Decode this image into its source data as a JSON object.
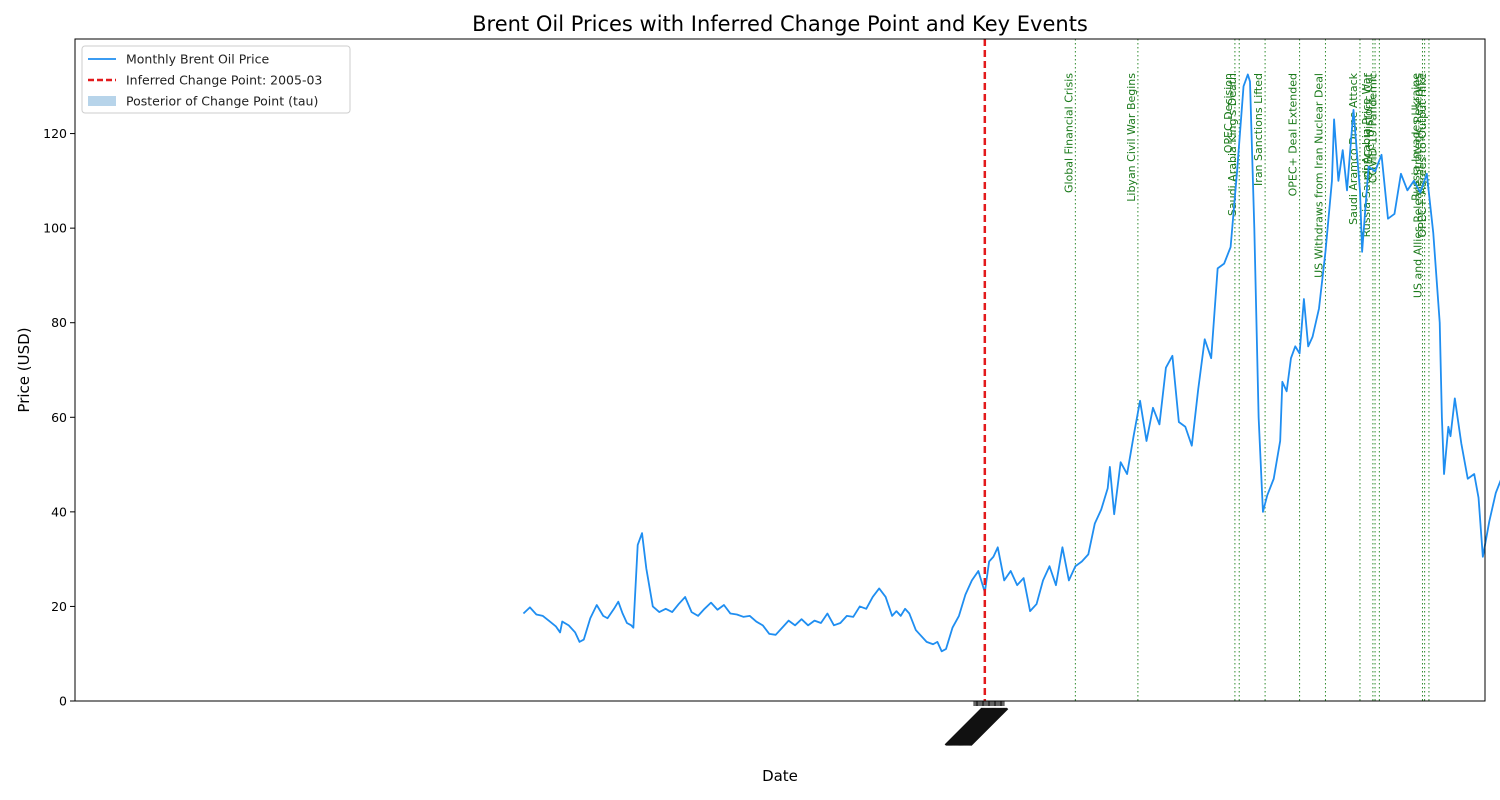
{
  "chart_data": {
    "type": "line",
    "title": "Brent Oil Prices with Inferred Change Point and Key Events",
    "xlabel": "Date",
    "ylabel": "Price (USD)",
    "ylim": [
      0,
      140
    ],
    "yticks": [
      0,
      20,
      40,
      60,
      80,
      100,
      120
    ],
    "xlim": [
      1970,
      2024.5
    ],
    "grid": false,
    "legend": {
      "placement": "top-left",
      "entries": [
        {
          "label": "Monthly Brent Oil Price",
          "style": "line",
          "color": "#1f8ef1"
        },
        {
          "label": "Inferred Change Point: 2005-03",
          "style": "dashed",
          "color": "#e31a1c"
        },
        {
          "label": "Posterior of Change Point (tau)",
          "style": "patch",
          "color": "#b7d4ea"
        }
      ]
    },
    "change_point": {
      "date": "2005-03",
      "color": "#e31a1c"
    },
    "series": [
      {
        "name": "Monthly Brent Oil Price",
        "color": "#1f8ef1",
        "points": [
          [
            "1987-05",
            18.5
          ],
          [
            "1987-08",
            19.8
          ],
          [
            "1987-11",
            18.3
          ],
          [
            "1988-02",
            18.0
          ],
          [
            "1988-05",
            16.9
          ],
          [
            "1988-08",
            15.8
          ],
          [
            "1988-10",
            14.5
          ],
          [
            "1988-11",
            16.8
          ],
          [
            "1989-02",
            16.0
          ],
          [
            "1989-05",
            14.5
          ],
          [
            "1989-07",
            12.5
          ],
          [
            "1989-09",
            13.0
          ],
          [
            "1989-12",
            17.5
          ],
          [
            "1990-03",
            20.3
          ],
          [
            "1990-06",
            18.0
          ],
          [
            "1990-08",
            17.5
          ],
          [
            "1990-11",
            19.5
          ],
          [
            "1991-01",
            21.0
          ],
          [
            "1991-03",
            18.5
          ],
          [
            "1991-05",
            16.5
          ],
          [
            "1991-07",
            16.0
          ],
          [
            "1991-08",
            15.5
          ],
          [
            "1991-10",
            33.0
          ],
          [
            "1991-12",
            35.5
          ],
          [
            "1992-02",
            28.0
          ],
          [
            "1992-05",
            20.0
          ],
          [
            "1992-08",
            18.8
          ],
          [
            "1992-11",
            19.5
          ],
          [
            "1993-02",
            18.8
          ],
          [
            "1993-05",
            20.5
          ],
          [
            "1993-08",
            22.0
          ],
          [
            "1993-11",
            18.8
          ],
          [
            "1994-02",
            18.0
          ],
          [
            "1994-05",
            19.5
          ],
          [
            "1994-08",
            20.8
          ],
          [
            "1994-11",
            19.3
          ],
          [
            "1995-02",
            20.3
          ],
          [
            "1995-05",
            18.5
          ],
          [
            "1995-08",
            18.3
          ],
          [
            "1995-11",
            17.8
          ],
          [
            "1996-02",
            18.0
          ],
          [
            "1996-05",
            16.8
          ],
          [
            "1996-08",
            16.0
          ],
          [
            "1996-11",
            14.2
          ],
          [
            "1997-02",
            14.0
          ],
          [
            "1997-05",
            15.5
          ],
          [
            "1997-08",
            17.0
          ],
          [
            "1997-11",
            16.0
          ],
          [
            "1998-02",
            17.3
          ],
          [
            "1998-05",
            16.0
          ],
          [
            "1998-08",
            17.0
          ],
          [
            "1998-11",
            16.5
          ],
          [
            "1999-02",
            18.5
          ],
          [
            "1999-05",
            16.0
          ],
          [
            "1999-08",
            16.5
          ],
          [
            "1999-11",
            18.0
          ],
          [
            "2000-02",
            17.8
          ],
          [
            "2000-05",
            20.0
          ],
          [
            "2000-08",
            19.5
          ],
          [
            "2000-11",
            22.0
          ],
          [
            "2001-02",
            23.8
          ],
          [
            "2001-05",
            22.0
          ],
          [
            "2001-08",
            18.0
          ],
          [
            "2001-10",
            19.0
          ],
          [
            "2001-12",
            18.0
          ],
          [
            "2002-02",
            19.5
          ],
          [
            "2002-04",
            18.5
          ],
          [
            "2002-07",
            15.0
          ],
          [
            "2002-09",
            14.0
          ],
          [
            "2002-12",
            12.5
          ],
          [
            "2003-03",
            12.0
          ],
          [
            "2003-05",
            12.5
          ],
          [
            "2003-07",
            10.5
          ],
          [
            "2003-09",
            11.0
          ],
          [
            "2003-12",
            15.5
          ],
          [
            "2004-03",
            18.0
          ],
          [
            "2004-06",
            22.5
          ],
          [
            "2004-09",
            25.5
          ],
          [
            "2004-12",
            27.5
          ],
          [
            "2005-03",
            23.0
          ],
          [
            "2005-05",
            29.5
          ],
          [
            "2005-07",
            30.5
          ],
          [
            "2005-09",
            32.5
          ],
          [
            "2005-12",
            25.5
          ],
          [
            "2006-03",
            27.5
          ],
          [
            "2006-06",
            24.5
          ],
          [
            "2006-09",
            26.0
          ],
          [
            "2006-12",
            19.0
          ],
          [
            "2007-03",
            20.5
          ],
          [
            "2007-06",
            25.5
          ],
          [
            "2007-09",
            28.5
          ],
          [
            "2007-12",
            24.5
          ],
          [
            "2008-03",
            32.5
          ],
          [
            "2008-06",
            25.5
          ],
          [
            "2008-09",
            28.5
          ],
          [
            "2008-12",
            29.5
          ],
          [
            "2009-03",
            31.0
          ],
          [
            "2009-06",
            37.5
          ],
          [
            "2009-09",
            40.5
          ],
          [
            "2009-12",
            45.0
          ],
          [
            "2010-01",
            49.5
          ],
          [
            "2010-03",
            39.5
          ],
          [
            "2010-06",
            50.5
          ],
          [
            "2010-09",
            48.0
          ],
          [
            "2010-12",
            56.0
          ],
          [
            "2011-03",
            63.5
          ],
          [
            "2011-06",
            55.0
          ],
          [
            "2011-09",
            62.0
          ],
          [
            "2011-12",
            58.5
          ],
          [
            "2012-03",
            70.5
          ],
          [
            "2012-06",
            73.0
          ],
          [
            "2012-09",
            59.0
          ],
          [
            "2012-12",
            58.0
          ],
          [
            "2013-03",
            54.0
          ],
          [
            "2013-06",
            66.0
          ],
          [
            "2013-09",
            76.5
          ],
          [
            "2013-12",
            72.5
          ],
          [
            "2014-03",
            91.5
          ],
          [
            "2014-06",
            92.5
          ],
          [
            "2014-09",
            96.0
          ],
          [
            "2014-12",
            112.0
          ],
          [
            "2015-03",
            130.0
          ],
          [
            "2015-05",
            132.5
          ],
          [
            "2015-06",
            131.0
          ],
          [
            "2015-08",
            100.0
          ],
          [
            "2015-10",
            60.0
          ],
          [
            "2015-12",
            40.0
          ],
          [
            "2016-02",
            43.5
          ],
          [
            "2016-05",
            47.0
          ],
          [
            "2016-08",
            55.0
          ],
          [
            "2016-09",
            67.5
          ],
          [
            "2016-11",
            65.5
          ],
          [
            "2017-01",
            72.5
          ],
          [
            "2017-03",
            75.0
          ],
          [
            "2017-05",
            73.5
          ],
          [
            "2017-07",
            85.0
          ],
          [
            "2017-09",
            75.0
          ],
          [
            "2017-11",
            77.0
          ],
          [
            "2018-02",
            83.0
          ],
          [
            "2018-05",
            95.0
          ],
          [
            "2018-08",
            110.0
          ],
          [
            "2018-09",
            123.0
          ],
          [
            "2018-11",
            110.0
          ],
          [
            "2019-01",
            116.5
          ],
          [
            "2019-03",
            108.0
          ],
          [
            "2019-06",
            125.0
          ],
          [
            "2019-09",
            108.0
          ],
          [
            "2019-10",
            95.0
          ],
          [
            "2020-01",
            113.0
          ],
          [
            "2020-04",
            112.0
          ],
          [
            "2020-07",
            115.5
          ],
          [
            "2020-10",
            102.0
          ],
          [
            "2021-01",
            103.0
          ],
          [
            "2021-04",
            111.5
          ],
          [
            "2021-07",
            108.0
          ],
          [
            "2021-10",
            110.0
          ],
          [
            "2022-01",
            107.5
          ],
          [
            "2022-04",
            111.5
          ],
          [
            "2022-07",
            99.0
          ],
          [
            "2022-10",
            80.0
          ],
          [
            "2022-11",
            60.0
          ],
          [
            "2022-12",
            48.0
          ],
          [
            "2023-02",
            58.0
          ],
          [
            "2023-03",
            56.0
          ],
          [
            "2023-05",
            64.0
          ],
          [
            "2023-08",
            54.5
          ],
          [
            "2023-11",
            47.0
          ],
          [
            "2024-02",
            48.0
          ],
          [
            "2024-04",
            43.0
          ],
          [
            "2024-06",
            30.5
          ],
          [
            "2024-09",
            38.0
          ],
          [
            "2024-12",
            44.0
          ],
          [
            "2025-03",
            47.5
          ],
          [
            "2025-06",
            46.5
          ],
          [
            "2025-09",
            48.0
          ],
          [
            "2025-11",
            45.0
          ],
          [
            "2026-02",
            53.5
          ],
          [
            "2026-05",
            55.0
          ],
          [
            "2026-08",
            51.5
          ],
          [
            "2026-11",
            46.0
          ],
          [
            "2027-02",
            51.0
          ],
          [
            "2027-05",
            56.0
          ],
          [
            "2027-08",
            62.5
          ],
          [
            "2027-11",
            67.0
          ],
          [
            "2028-02",
            66.0
          ],
          [
            "2028-05",
            75.0
          ],
          [
            "2028-08",
            72.5
          ],
          [
            "2028-11",
            79.0
          ],
          [
            "2029-01",
            81.0
          ],
          [
            "2029-04",
            57.0
          ],
          [
            "2029-07",
            63.0
          ],
          [
            "2029-10",
            71.0
          ],
          [
            "2030-01",
            64.0
          ],
          [
            "2030-04",
            59.0
          ],
          [
            "2030-07",
            62.0
          ],
          [
            "2030-10",
            67.0
          ],
          [
            "2031-01",
            62.0
          ],
          [
            "2031-04",
            40.0
          ],
          [
            "2031-06",
            18.0
          ],
          [
            "2031-09",
            40.0
          ],
          [
            "2031-12",
            44.5
          ],
          [
            "2032-03",
            40.0
          ],
          [
            "2032-06",
            49.5
          ],
          [
            "2032-09",
            55.0
          ],
          [
            "2032-12",
            64.5
          ],
          [
            "2033-03",
            68.0
          ],
          [
            "2033-06",
            73.5
          ],
          [
            "2033-08",
            71.0
          ],
          [
            "2033-11",
            83.5
          ],
          [
            "2034-02",
            75.0
          ],
          [
            "2034-05",
            96.0
          ],
          [
            "2034-08",
            100.0
          ],
          [
            "2034-11",
            122.0
          ],
          [
            "2035-02",
            105.0
          ],
          [
            "2035-05",
            90.0
          ],
          [
            "2035-08",
            96.0
          ]
        ]
      }
    ],
    "events": [
      {
        "date": "2008-09",
        "label": "Global Financial Crisis"
      },
      {
        "date": "2011-02",
        "label": "Libyan Civil War Begins"
      },
      {
        "date": "2014-11",
        "label": "OPEC Decision"
      },
      {
        "date": "2015-01",
        "label": "Saudi Arabia King's Death"
      },
      {
        "date": "2016-01",
        "label": "Iran Sanctions Lifted"
      },
      {
        "date": "2017-05",
        "label": "OPEC+ Deal Extended"
      },
      {
        "date": "2018-05",
        "label": "US Withdraws from Iran Nuclear Deal"
      },
      {
        "date": "2019-09",
        "label": "Saudi Aramco Drone Attack"
      },
      {
        "date": "2020-03",
        "label": "Russia-Saudi Arabia Price War"
      },
      {
        "date": "2020-04",
        "label": "OPEC+ Historic Cut"
      },
      {
        "date": "2020-06",
        "label": "COVID-19 Pandemic"
      },
      {
        "date": "2022-02",
        "label": "Russia Invades Ukraine"
      },
      {
        "date": "2022-03",
        "label": "US and Allies Release Strategic Reserves"
      },
      {
        "date": "2022-05",
        "label": "OPEC+ Agrees to Output Hike"
      }
    ],
    "event_color": "#2e8b2e"
  }
}
